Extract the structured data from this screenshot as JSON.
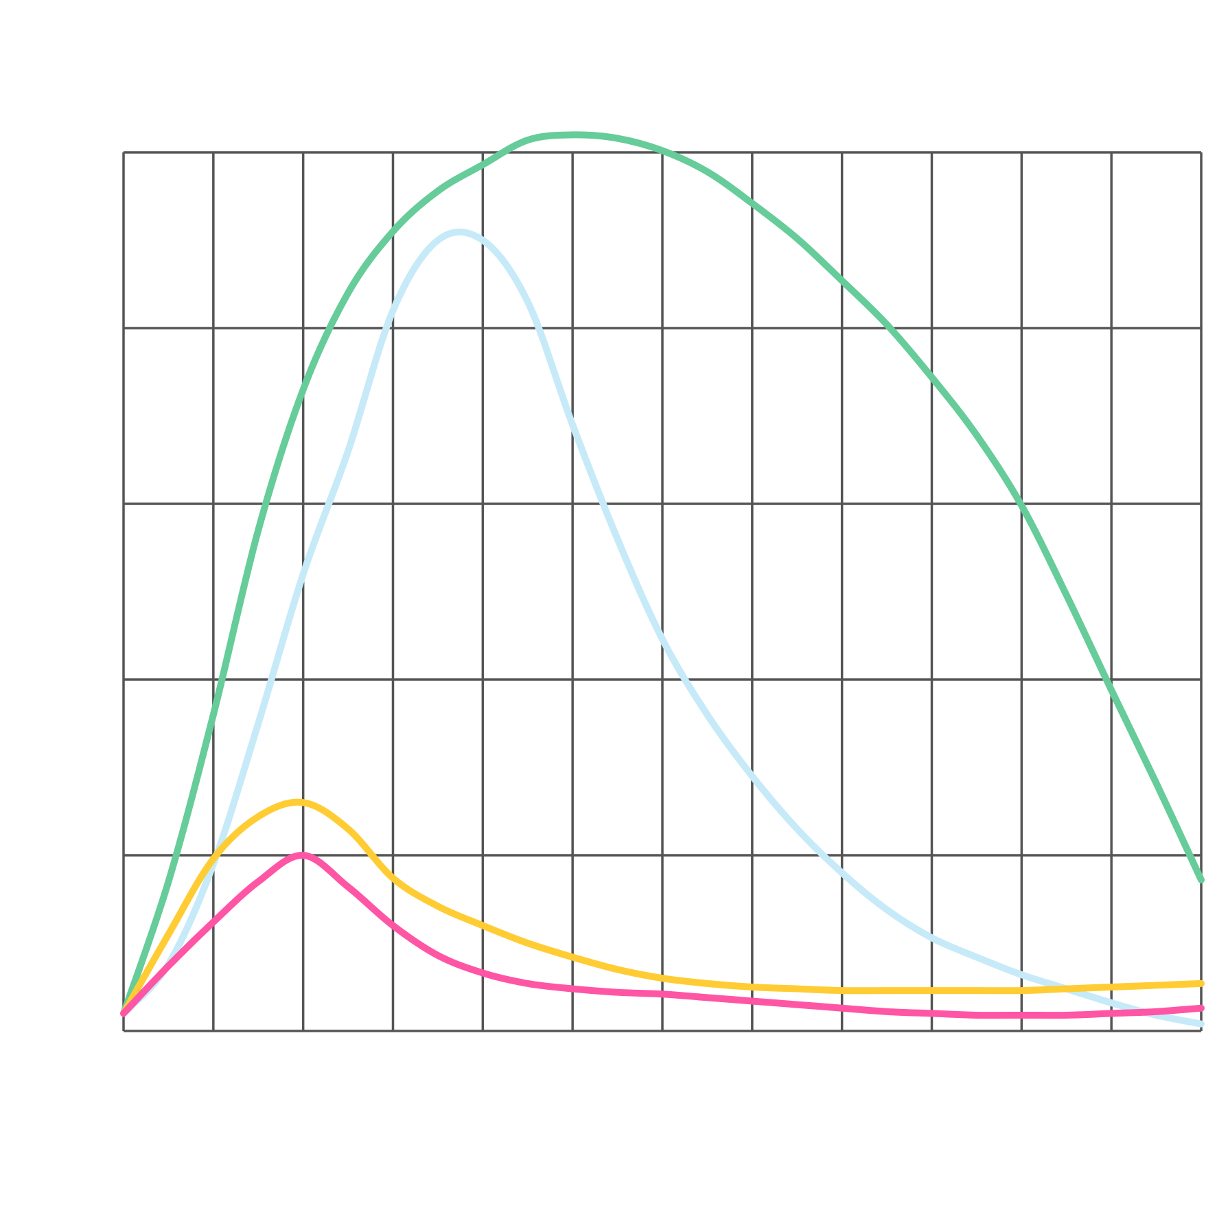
{
  "chart_data": {
    "type": "line",
    "title": "",
    "xlabel": "",
    "ylabel": "",
    "xlim": [
      0,
      12
    ],
    "ylim": [
      0,
      5
    ],
    "grid": true,
    "grid_color": "#555555",
    "x_grid_lines": [
      0,
      1,
      2,
      3,
      4,
      5,
      6,
      7,
      8,
      9,
      10,
      11,
      12
    ],
    "y_grid_lines": [
      0,
      1,
      2,
      3,
      4,
      5
    ],
    "series": [
      {
        "color": "#66CC99",
        "points": [
          [
            0,
            0.1
          ],
          [
            0.5,
            0.85
          ],
          [
            1,
            1.8
          ],
          [
            1.5,
            2.85
          ],
          [
            2,
            3.65
          ],
          [
            2.5,
            4.2
          ],
          [
            3,
            4.55
          ],
          [
            3.5,
            4.78
          ],
          [
            4,
            4.93
          ],
          [
            4.5,
            5.07
          ],
          [
            5,
            5.1
          ],
          [
            5.5,
            5.08
          ],
          [
            6,
            5.01
          ],
          [
            6.5,
            4.89
          ],
          [
            7,
            4.71
          ],
          [
            7.5,
            4.51
          ],
          [
            8,
            4.27
          ],
          [
            8.5,
            4.02
          ],
          [
            9,
            3.72
          ],
          [
            9.5,
            3.39
          ],
          [
            10,
            2.99
          ],
          [
            10.5,
            2.48
          ],
          [
            11,
            1.94
          ],
          [
            11.5,
            1.41
          ],
          [
            12,
            0.86
          ]
        ]
      },
      {
        "color": "#C6EAF8",
        "points": [
          [
            0,
            0.1
          ],
          [
            0.5,
            0.38
          ],
          [
            1,
            0.95
          ],
          [
            1.5,
            1.75
          ],
          [
            2,
            2.6
          ],
          [
            2.5,
            3.3
          ],
          [
            3,
            4.1
          ],
          [
            3.5,
            4.5
          ],
          [
            4,
            4.5
          ],
          [
            4.5,
            4.15
          ],
          [
            5,
            3.45
          ],
          [
            5.5,
            2.8
          ],
          [
            6,
            2.23
          ],
          [
            6.5,
            1.8
          ],
          [
            7,
            1.45
          ],
          [
            7.5,
            1.15
          ],
          [
            8,
            0.9
          ],
          [
            8.5,
            0.69
          ],
          [
            9,
            0.53
          ],
          [
            9.5,
            0.42
          ],
          [
            10,
            0.32
          ],
          [
            10.5,
            0.24
          ],
          [
            11,
            0.16
          ],
          [
            11.5,
            0.09
          ],
          [
            12,
            0.04
          ]
        ]
      },
      {
        "color": "#FFCC33",
        "points": [
          [
            0,
            0.1
          ],
          [
            0.5,
            0.55
          ],
          [
            1,
            0.98
          ],
          [
            1.5,
            1.22
          ],
          [
            2,
            1.3
          ],
          [
            2.5,
            1.15
          ],
          [
            3,
            0.87
          ],
          [
            3.5,
            0.71
          ],
          [
            4,
            0.6
          ],
          [
            4.5,
            0.5
          ],
          [
            5,
            0.42
          ],
          [
            5.5,
            0.35
          ],
          [
            6,
            0.3
          ],
          [
            6.5,
            0.27
          ],
          [
            7,
            0.25
          ],
          [
            7.5,
            0.24
          ],
          [
            8,
            0.23
          ],
          [
            8.5,
            0.23
          ],
          [
            9,
            0.23
          ],
          [
            9.5,
            0.23
          ],
          [
            10,
            0.23
          ],
          [
            10.5,
            0.24
          ],
          [
            11,
            0.25
          ],
          [
            11.5,
            0.26
          ],
          [
            12,
            0.27
          ]
        ]
      },
      {
        "color": "#FF55A5",
        "points": [
          [
            0,
            0.1
          ],
          [
            0.5,
            0.37
          ],
          [
            1,
            0.62
          ],
          [
            1.5,
            0.85
          ],
          [
            2,
            1.0
          ],
          [
            2.5,
            0.82
          ],
          [
            3,
            0.6
          ],
          [
            3.5,
            0.43
          ],
          [
            4,
            0.33
          ],
          [
            4.5,
            0.27
          ],
          [
            5,
            0.24
          ],
          [
            5.5,
            0.22
          ],
          [
            6,
            0.21
          ],
          [
            6.5,
            0.19
          ],
          [
            7,
            0.17
          ],
          [
            7.5,
            0.15
          ],
          [
            8,
            0.13
          ],
          [
            8.5,
            0.11
          ],
          [
            9,
            0.1
          ],
          [
            9.5,
            0.09
          ],
          [
            10,
            0.09
          ],
          [
            10.5,
            0.09
          ],
          [
            11,
            0.1
          ],
          [
            11.5,
            0.11
          ],
          [
            12,
            0.13
          ]
        ]
      }
    ]
  }
}
